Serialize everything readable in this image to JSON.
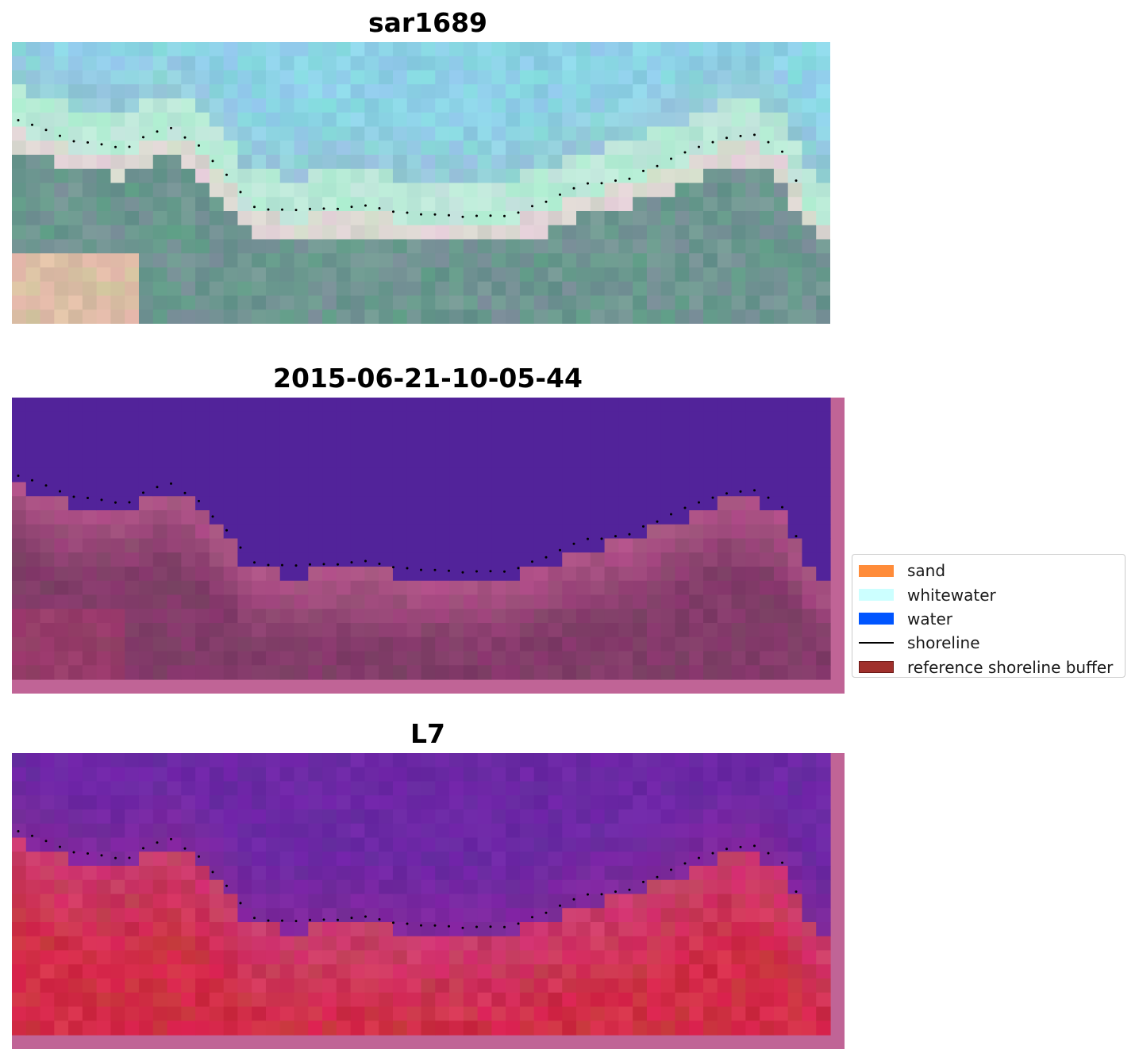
{
  "panels": [
    {
      "title": "sar1689",
      "image": "rgb-composite"
    },
    {
      "title": "2015-06-21-10-05-44",
      "image": "classified-overlay"
    },
    {
      "title": "L7",
      "image": "index-overlay"
    }
  ],
  "legend": {
    "items": [
      {
        "label": "sand",
        "color": "#ff8c3a",
        "kind": "patch"
      },
      {
        "label": "whitewater",
        "color": "#ccffff",
        "kind": "patch"
      },
      {
        "label": "water",
        "color": "#0055ff",
        "kind": "patch"
      },
      {
        "label": "shoreline",
        "color": "#000000",
        "kind": "line"
      },
      {
        "label": "reference shoreline buffer",
        "color": "#a0302c",
        "kind": "patch"
      }
    ]
  },
  "colors": {
    "buffer_overlay": "#c06496",
    "water_class": "#52239a"
  }
}
